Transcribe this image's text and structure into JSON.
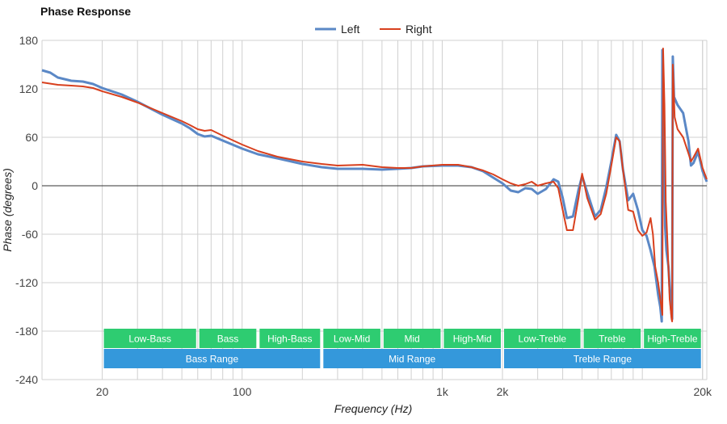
{
  "chart_data": {
    "type": "line",
    "title": "Phase Response",
    "xlabel": "Frequency (Hz)",
    "ylabel": "Phase (degrees)",
    "xscale": "log",
    "xlim": [
      10,
      21000
    ],
    "ylim": [
      -240,
      180
    ],
    "yticks": [
      180,
      120,
      60,
      0,
      -60,
      -120,
      -180,
      -240
    ],
    "xticks": [
      {
        "value": 20,
        "label": "20"
      },
      {
        "value": 100,
        "label": "100"
      },
      {
        "value": 1000,
        "label": "1k"
      },
      {
        "value": 2000,
        "label": "2k"
      },
      {
        "value": 20000,
        "label": "20k"
      }
    ],
    "grid": true,
    "legend": "top-center",
    "colors": {
      "Left": "#5b88c6",
      "Right": "#d8401e",
      "band_top": "#2ecc71",
      "band_bottom": "#3498db"
    },
    "series": [
      {
        "name": "Left",
        "points": [
          [
            10,
            143
          ],
          [
            11,
            140
          ],
          [
            12,
            134
          ],
          [
            14,
            130
          ],
          [
            16,
            129
          ],
          [
            18,
            126
          ],
          [
            20,
            121
          ],
          [
            25,
            113
          ],
          [
            30,
            104
          ],
          [
            40,
            88
          ],
          [
            50,
            77
          ],
          [
            55,
            71
          ],
          [
            60,
            64
          ],
          [
            65,
            61
          ],
          [
            70,
            62
          ],
          [
            80,
            56
          ],
          [
            100,
            46
          ],
          [
            120,
            39
          ],
          [
            150,
            34
          ],
          [
            200,
            27
          ],
          [
            250,
            23
          ],
          [
            300,
            21
          ],
          [
            400,
            21
          ],
          [
            500,
            20
          ],
          [
            600,
            21
          ],
          [
            700,
            22
          ],
          [
            800,
            24
          ],
          [
            1000,
            25
          ],
          [
            1200,
            25
          ],
          [
            1400,
            23
          ],
          [
            1600,
            18
          ],
          [
            1800,
            10
          ],
          [
            2000,
            3
          ],
          [
            2200,
            -6
          ],
          [
            2400,
            -8
          ],
          [
            2600,
            -3
          ],
          [
            2800,
            -4
          ],
          [
            3000,
            -10
          ],
          [
            3300,
            -4
          ],
          [
            3600,
            8
          ],
          [
            3800,
            5
          ],
          [
            4000,
            -15
          ],
          [
            4200,
            -40
          ],
          [
            4500,
            -38
          ],
          [
            4800,
            -5
          ],
          [
            5000,
            12
          ],
          [
            5300,
            -8
          ],
          [
            5800,
            -38
          ],
          [
            6200,
            -30
          ],
          [
            6600,
            -2
          ],
          [
            7000,
            30
          ],
          [
            7400,
            63
          ],
          [
            7700,
            55
          ],
          [
            8000,
            20
          ],
          [
            8500,
            -18
          ],
          [
            9000,
            -10
          ],
          [
            9500,
            -30
          ],
          [
            10000,
            -55
          ],
          [
            10500,
            -62
          ],
          [
            11000,
            -80
          ],
          [
            11500,
            -100
          ],
          [
            12000,
            -135
          ],
          [
            12300,
            -150
          ],
          [
            12500,
            -168
          ],
          [
            12600,
            168
          ],
          [
            12800,
            80
          ],
          [
            13000,
            -50
          ],
          [
            13200,
            -80
          ],
          [
            13500,
            -100
          ],
          [
            13800,
            -140
          ],
          [
            14000,
            -160
          ],
          [
            14100,
            -165
          ],
          [
            14200,
            160
          ],
          [
            14400,
            110
          ],
          [
            15000,
            100
          ],
          [
            16000,
            90
          ],
          [
            17000,
            55
          ],
          [
            17500,
            25
          ],
          [
            18000,
            28
          ],
          [
            19000,
            42
          ],
          [
            20000,
            18
          ],
          [
            21000,
            5
          ]
        ]
      },
      {
        "name": "Right",
        "points": [
          [
            10,
            128
          ],
          [
            12,
            125
          ],
          [
            14,
            124
          ],
          [
            16,
            123
          ],
          [
            18,
            121
          ],
          [
            20,
            117
          ],
          [
            25,
            110
          ],
          [
            30,
            103
          ],
          [
            40,
            90
          ],
          [
            50,
            80
          ],
          [
            55,
            75
          ],
          [
            60,
            70
          ],
          [
            65,
            68
          ],
          [
            70,
            69
          ],
          [
            80,
            62
          ],
          [
            100,
            51
          ],
          [
            120,
            43
          ],
          [
            150,
            36
          ],
          [
            200,
            30
          ],
          [
            250,
            27
          ],
          [
            300,
            25
          ],
          [
            400,
            26
          ],
          [
            500,
            23
          ],
          [
            600,
            22
          ],
          [
            700,
            22
          ],
          [
            800,
            24
          ],
          [
            1000,
            26
          ],
          [
            1200,
            26
          ],
          [
            1400,
            23
          ],
          [
            1600,
            19
          ],
          [
            1800,
            14
          ],
          [
            2000,
            8
          ],
          [
            2200,
            3
          ],
          [
            2400,
            0
          ],
          [
            2600,
            2
          ],
          [
            2800,
            5
          ],
          [
            3000,
            0
          ],
          [
            3300,
            3
          ],
          [
            3600,
            5
          ],
          [
            3800,
            -3
          ],
          [
            4000,
            -30
          ],
          [
            4200,
            -55
          ],
          [
            4500,
            -55
          ],
          [
            4800,
            -15
          ],
          [
            5000,
            15
          ],
          [
            5300,
            -15
          ],
          [
            5800,
            -42
          ],
          [
            6200,
            -35
          ],
          [
            6600,
            -10
          ],
          [
            7000,
            25
          ],
          [
            7400,
            60
          ],
          [
            7700,
            55
          ],
          [
            8000,
            20
          ],
          [
            8500,
            -30
          ],
          [
            9000,
            -32
          ],
          [
            9500,
            -55
          ],
          [
            10000,
            -62
          ],
          [
            10500,
            -58
          ],
          [
            11000,
            -40
          ],
          [
            11300,
            -60
          ],
          [
            11600,
            -100
          ],
          [
            12000,
            -120
          ],
          [
            12300,
            -140
          ],
          [
            12600,
            -160
          ],
          [
            12700,
            170
          ],
          [
            12900,
            100
          ],
          [
            13100,
            -20
          ],
          [
            13400,
            -80
          ],
          [
            13700,
            -140
          ],
          [
            14000,
            -165
          ],
          [
            14100,
            -168
          ],
          [
            14200,
            150
          ],
          [
            14500,
            85
          ],
          [
            15000,
            70
          ],
          [
            16000,
            60
          ],
          [
            17000,
            40
          ],
          [
            17500,
            30
          ],
          [
            18000,
            35
          ],
          [
            19000,
            46
          ],
          [
            20000,
            22
          ],
          [
            21000,
            8
          ]
        ]
      }
    ],
    "bands_top": [
      {
        "label": "Low-Bass",
        "from": 20,
        "to": 60
      },
      {
        "label": "Bass",
        "from": 60,
        "to": 120
      },
      {
        "label": "High-Bass",
        "from": 120,
        "to": 250
      },
      {
        "label": "Low-Mid",
        "from": 250,
        "to": 500
      },
      {
        "label": "Mid",
        "from": 500,
        "to": 1000
      },
      {
        "label": "High-Mid",
        "from": 1000,
        "to": 2000
      },
      {
        "label": "Low-Treble",
        "from": 2000,
        "to": 5000
      },
      {
        "label": "Treble",
        "from": 5000,
        "to": 10000
      },
      {
        "label": "High-Treble",
        "from": 10000,
        "to": 20000
      }
    ],
    "bands_bottom": [
      {
        "label": "Bass Range",
        "from": 20,
        "to": 250
      },
      {
        "label": "Mid Range",
        "from": 250,
        "to": 2000
      },
      {
        "label": "Treble Range",
        "from": 2000,
        "to": 20000
      }
    ]
  }
}
